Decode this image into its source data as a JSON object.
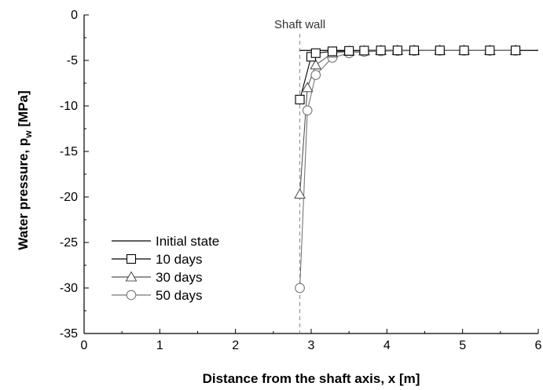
{
  "chart_data": {
    "type": "line",
    "xlabel": "Distance from the shaft axis, x [m]",
    "ylabel_main": "Water pressure, p",
    "ylabel_sub": "w",
    "ylabel_unit": " [MPa]",
    "xlim": [
      0,
      6
    ],
    "ylim": [
      -35,
      0
    ],
    "xticks": [
      0,
      1,
      2,
      3,
      4,
      5,
      6
    ],
    "yticks": [
      0,
      -5,
      -10,
      -15,
      -20,
      -25,
      -30,
      -35
    ],
    "annotation": {
      "text": "Shaft wall",
      "x": 2.85
    },
    "legend_position": "bottom-left",
    "series": [
      {
        "name": "Initial state",
        "marker": "none",
        "x": [
          2.85,
          6
        ],
        "y": [
          -3.9,
          -3.9
        ]
      },
      {
        "name": "10 days",
        "marker": "square",
        "x": [
          2.85,
          3.0,
          3.06,
          3.28,
          3.5,
          3.7,
          3.92,
          4.14,
          4.36,
          4.7,
          5.02,
          5.36,
          5.7
        ],
        "y": [
          -9.3,
          -4.6,
          -4.2,
          -4.0,
          -3.95,
          -3.92,
          -3.9,
          -3.9,
          -3.9,
          -3.9,
          -3.9,
          -3.9,
          -3.9
        ]
      },
      {
        "name": "30 days",
        "marker": "triangle",
        "x": [
          2.85,
          2.95,
          3.06,
          3.28,
          3.5,
          3.7,
          3.92,
          4.14,
          4.36,
          4.7,
          5.02,
          5.36,
          5.7
        ],
        "y": [
          -19.7,
          -8.0,
          -5.5,
          -4.2,
          -4.0,
          -3.95,
          -3.92,
          -3.9,
          -3.9,
          -3.9,
          -3.9,
          -3.9,
          -3.9
        ]
      },
      {
        "name": "50 days",
        "marker": "circle",
        "x": [
          2.85,
          2.95,
          3.06,
          3.28,
          3.5,
          3.7,
          3.92,
          4.14,
          4.36,
          4.7,
          5.02,
          5.36,
          5.7
        ],
        "y": [
          -30.0,
          -10.5,
          -6.6,
          -4.7,
          -4.2,
          -4.05,
          -3.98,
          -3.95,
          -3.93,
          -3.92,
          -3.92,
          -3.92,
          -3.92
        ]
      }
    ]
  }
}
